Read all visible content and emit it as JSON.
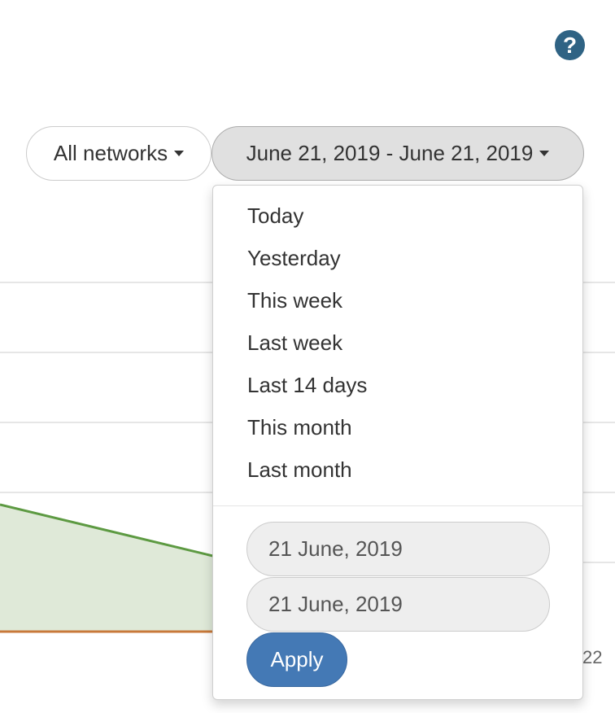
{
  "help": {
    "icon": "question-circle-icon",
    "glyph": "?",
    "color": "#2f6384"
  },
  "toolbar": {
    "network_label": "All networks",
    "daterange_label": "June 21, 2019 - June 21, 2019"
  },
  "daterange_menu": {
    "ranges": [
      "Today",
      "Yesterday",
      "This week",
      "Last week",
      "Last 14 days",
      "This month",
      "Last month"
    ],
    "start_date": "21 June, 2019",
    "end_date": "21 June, 2019",
    "apply_label": "Apply"
  },
  "chart": {
    "visible_tick_label": "22",
    "series_colors": {
      "green_area": "#5d9a42",
      "green_fill": "#dfe9d8",
      "orange_line": "#c8793a"
    }
  },
  "colors": {
    "primary": "#4479b5",
    "active_toggle_bg": "#e0e0e0"
  }
}
